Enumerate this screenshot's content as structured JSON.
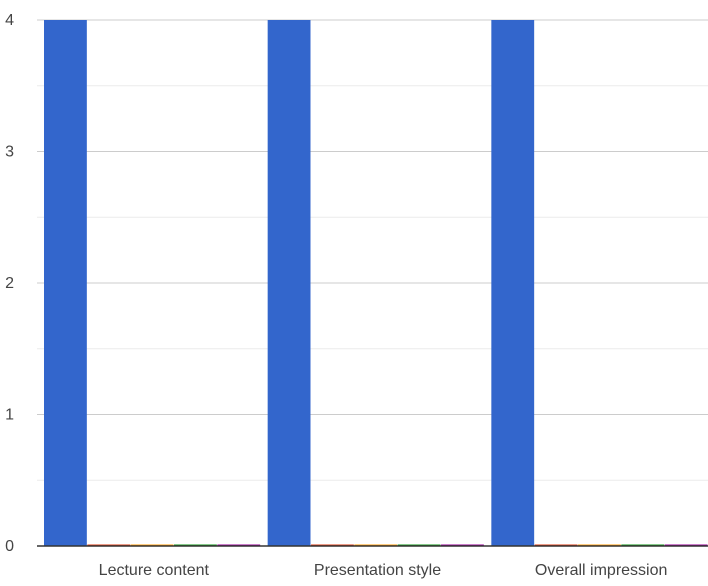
{
  "chart_data": {
    "type": "bar",
    "categories": [
      "Lecture content",
      "Presentation style",
      "Overall impression"
    ],
    "series": [
      {
        "values": [
          4,
          4,
          4
        ],
        "color": "#3366cc"
      },
      {
        "values": [
          0,
          0,
          0
        ],
        "color": "#dc3912"
      },
      {
        "values": [
          0,
          0,
          0
        ],
        "color": "#ff9900"
      },
      {
        "values": [
          0,
          0,
          0
        ],
        "color": "#109618"
      },
      {
        "values": [
          0,
          0,
          0
        ],
        "color": "#990099"
      }
    ],
    "yticks": [
      "0",
      "1",
      "2",
      "3",
      "4"
    ],
    "ylim": [
      0,
      4
    ],
    "grid": true,
    "minor_grid": true,
    "legend": "none",
    "title": "",
    "xlabel": "",
    "ylabel": ""
  }
}
